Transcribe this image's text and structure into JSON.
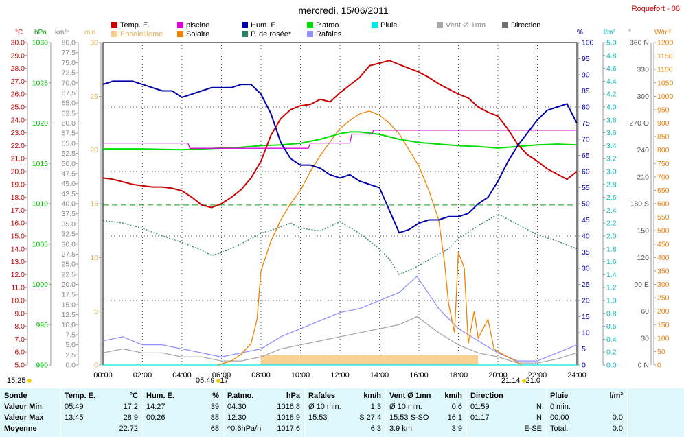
{
  "title": "mercredi, 15/06/2011",
  "station": "Roquefort - 06",
  "legend": [
    {
      "label": "Temp. E.",
      "color": "#cc0000"
    },
    {
      "label": "Ensoleilleme",
      "color": "#f8d090"
    },
    {
      "label": "piscine",
      "color": "#dd00dd"
    },
    {
      "label": "Solaire",
      "color": "#f08000"
    },
    {
      "label": "Hum. E.",
      "color": "#0000aa"
    },
    {
      "label": "P. de rosée*",
      "color": "#2e7d6a"
    },
    {
      "label": "P.atmo.",
      "color": "#00dd00"
    },
    {
      "label": "Rafales",
      "color": "#9090ff"
    },
    {
      "label": "Pluie",
      "color": "#00e8e8"
    },
    {
      "label": "Vent Ø 1mn",
      "color": "#a8a8a8"
    },
    {
      "label": "Direction",
      "color": "#707070"
    }
  ],
  "axis_units": {
    "temp": "°C",
    "pressure": "hPa",
    "wind": "km/h",
    "sun_min": "min",
    "humidity": "%",
    "rain": "l/m²",
    "direction": "°",
    "solar": "W/m²"
  },
  "footer": {
    "sunrise_left": "15:25",
    "sunrise": "05:49",
    "sunrise_suffix": "17",
    "sunset": "21:14",
    "sunset_suffix": "21:0"
  },
  "summary": {
    "row_labels": [
      "Sonde",
      "Valeur Min",
      "Valeur Max",
      "Moyenne"
    ],
    "columns": [
      {
        "name": "Temp. E.",
        "unit": "°C",
        "rows": [
          [
            "05:49",
            "17.2"
          ],
          [
            "13:45",
            "28.9"
          ],
          [
            "",
            "22.72"
          ]
        ]
      },
      {
        "name": "Hum. E.",
        "unit": "%",
        "rows": [
          [
            "14:27",
            "39"
          ],
          [
            "00:26",
            "88"
          ],
          [
            "",
            "68"
          ]
        ]
      },
      {
        "name": "P.atmo.",
        "unit": "hPa",
        "rows": [
          [
            "04:30",
            "1016.8"
          ],
          [
            "12:30",
            "1018.9"
          ],
          [
            "^0.6hPa/h",
            "1017.6"
          ]
        ]
      },
      {
        "name": "Rafales",
        "unit": "km/h",
        "rows": [
          [
            "Ø 10 min.",
            "1.3"
          ],
          [
            "15:53",
            "S 27.4"
          ],
          [
            "",
            "6.3"
          ]
        ]
      },
      {
        "name": "Vent Ø 1mn",
        "unit": "km/h",
        "rows": [
          [
            "Ø 10 min.",
            "0.6"
          ],
          [
            "15:53   S-SO",
            "16.1"
          ],
          [
            "3.9 km",
            "3.9"
          ]
        ]
      },
      {
        "name": "Direction",
        "unit": "",
        "rows": [
          [
            "01:59",
            "N"
          ],
          [
            "01:17",
            "N"
          ],
          [
            "",
            "E-SE"
          ]
        ]
      },
      {
        "name": "Pluie",
        "unit": "l/m²",
        "rows": [
          [
            "0 min.",
            ""
          ],
          [
            "00:00",
            "0.0"
          ],
          [
            "Total:",
            "0.0"
          ]
        ]
      }
    ]
  },
  "chart_data": {
    "type": "line",
    "title": "mercredi, 15/06/2011",
    "x_ticks": [
      "00:00",
      "02:00",
      "04:00",
      "06:00",
      "08:00",
      "10:00",
      "12:00",
      "14:00",
      "16:00",
      "18:00",
      "20:00",
      "22:00",
      "24:00"
    ],
    "xlim_hours": [
      0,
      24
    ],
    "axes": {
      "temp_c": {
        "range": [
          5,
          30
        ],
        "step": 1
      },
      "pressure_hpa": {
        "range": [
          990,
          1030
        ],
        "step": 5
      },
      "wind_kmh": {
        "range": [
          0,
          80
        ],
        "step": 2.5
      },
      "sun_min": {
        "range": [
          0,
          30
        ],
        "step": 5
      },
      "humidity_pct": {
        "range": [
          0,
          100
        ],
        "step": 5
      },
      "rain_lm2": {
        "range": [
          0,
          5
        ],
        "step": 0.2
      },
      "direction_deg": {
        "range": [
          0,
          360
        ],
        "ticks": [
          [
            0,
            "0 N"
          ],
          [
            30,
            "30"
          ],
          [
            60,
            "60"
          ],
          [
            90,
            "90 E"
          ],
          [
            120,
            "120"
          ],
          [
            150,
            "150"
          ],
          [
            180,
            "180 S"
          ],
          [
            210,
            "210"
          ],
          [
            240,
            "240"
          ],
          [
            270,
            "270 O"
          ],
          [
            300,
            "300"
          ],
          [
            330,
            "330"
          ],
          [
            360,
            "360 N"
          ]
        ]
      },
      "solar_wm2": {
        "range": [
          0,
          1200
        ],
        "step": 50
      }
    },
    "series": [
      {
        "name": "Temp. E.",
        "axis": "temp_c",
        "color": "#cc0000",
        "x": [
          0,
          0.5,
          1,
          1.5,
          2,
          2.5,
          3,
          3.5,
          4,
          4.5,
          5,
          5.5,
          6,
          6.5,
          7,
          7.5,
          8,
          8.5,
          9,
          9.5,
          10,
          10.5,
          11,
          11.5,
          12,
          12.5,
          13,
          13.5,
          14,
          14.5,
          15,
          15.5,
          16,
          16.5,
          17,
          17.5,
          18,
          18.5,
          19,
          19.5,
          20,
          20.5,
          21,
          21.5,
          22,
          22.5,
          23,
          23.5,
          24
        ],
        "y": [
          19.5,
          19.4,
          19.2,
          19.0,
          18.9,
          18.8,
          18.8,
          18.7,
          18.5,
          18.0,
          17.4,
          17.2,
          17.5,
          18.0,
          18.6,
          19.5,
          20.8,
          22.8,
          24.1,
          24.8,
          25.1,
          25.2,
          25.6,
          25.4,
          26.1,
          26.7,
          27.3,
          28.2,
          28.4,
          28.6,
          28.3,
          28.0,
          27.7,
          27.3,
          26.8,
          26.4,
          26.0,
          25.7,
          25.0,
          24.6,
          24.3,
          23.3,
          22.1,
          21.3,
          20.8,
          20.2,
          19.8,
          19.4,
          20.0
        ]
      },
      {
        "name": "Hum. E.",
        "axis": "humidity_pct",
        "color": "#0000aa",
        "x": [
          0,
          0.5,
          1,
          1.5,
          2,
          2.5,
          3,
          3.5,
          4,
          4.5,
          5,
          5.5,
          6,
          6.5,
          7,
          7.5,
          8,
          8.5,
          9,
          9.5,
          10,
          10.5,
          11,
          11.5,
          12,
          12.5,
          13,
          13.5,
          14,
          14.5,
          15,
          15.5,
          16,
          16.5,
          17,
          17.5,
          18,
          18.5,
          19,
          19.5,
          20,
          20.5,
          21,
          21.5,
          22,
          22.5,
          23,
          23.5,
          24
        ],
        "y": [
          87,
          88,
          88,
          88,
          87,
          86,
          85,
          85,
          83,
          84,
          85,
          86,
          86,
          86,
          87,
          87,
          84,
          78,
          69,
          64,
          62,
          62,
          61,
          59,
          58,
          59,
          57,
          56,
          55,
          48,
          41,
          42,
          44,
          45,
          45,
          46,
          46,
          47,
          50,
          52,
          57,
          63,
          68,
          72,
          76,
          79,
          80,
          81,
          75
        ]
      },
      {
        "name": "piscine",
        "axis": "temp_c",
        "color": "#dd00dd",
        "x": [
          0,
          4.3,
          4.4,
          10.4,
          10.5,
          12.5,
          12.6,
          13.6,
          13.7,
          24
        ],
        "y": [
          22.2,
          22.2,
          21.8,
          21.8,
          22.2,
          22.2,
          22.9,
          22.9,
          23.2,
          23.2
        ]
      },
      {
        "name": "P.atmo.",
        "axis": "pressure_hpa",
        "color": "#00dd00",
        "x": [
          0,
          2,
          4,
          6,
          7,
          8,
          9,
          10,
          11,
          12,
          12.5,
          13,
          14,
          15,
          16,
          17,
          18,
          19,
          20,
          21,
          22,
          23,
          24
        ],
        "y": [
          1016.8,
          1016.8,
          1016.7,
          1016.9,
          1017.0,
          1017.2,
          1017.3,
          1017.5,
          1018.0,
          1018.7,
          1018.9,
          1018.9,
          1018.6,
          1018.0,
          1017.6,
          1017.4,
          1017.2,
          1017.1,
          1016.9,
          1017.1,
          1017.3,
          1017.4,
          1017.3
        ]
      },
      {
        "name": "P. de rosée*",
        "axis": "temp_c",
        "color": "#2e7d6a",
        "x": [
          0,
          1,
          2,
          3,
          4,
          5,
          5.5,
          6,
          7,
          8,
          9,
          9.5,
          10,
          11,
          12,
          13,
          14,
          14.5,
          15,
          16,
          17,
          17.5,
          18,
          19,
          20,
          21,
          22,
          23,
          24
        ],
        "y": [
          16.2,
          16.0,
          15.6,
          15.0,
          14.5,
          13.9,
          13.5,
          13.7,
          14.4,
          15.2,
          15.7,
          16.0,
          15.6,
          15.4,
          16.1,
          15.2,
          14.0,
          13.2,
          12.0,
          12.7,
          13.6,
          14.0,
          14.8,
          15.8,
          16.7,
          15.9,
          15.1,
          14.6,
          14.0
        ]
      },
      {
        "name": "Solaire",
        "axis": "solar_wm2",
        "color": "#f08000",
        "x": [
          5.8,
          6.5,
          7,
          7.5,
          7.8,
          8,
          8.5,
          9,
          9.5,
          10,
          10.5,
          11,
          11.5,
          12,
          12.5,
          13,
          13.5,
          14,
          14.5,
          15,
          15.5,
          16,
          16.5,
          17,
          17.3,
          17.5,
          17.8,
          18,
          18.3,
          18.5,
          18.8,
          19,
          19.5,
          19.8,
          20,
          20.5,
          21,
          21.2
        ],
        "y": [
          0,
          15,
          40,
          80,
          170,
          350,
          460,
          540,
          600,
          650,
          720,
          780,
          830,
          880,
          910,
          935,
          945,
          930,
          900,
          860,
          800,
          740,
          650,
          540,
          380,
          230,
          120,
          420,
          360,
          80,
          200,
          100,
          170,
          60,
          50,
          30,
          10,
          0
        ]
      },
      {
        "name": "Rafales",
        "axis": "wind_kmh",
        "color": "#9090ff",
        "x": [
          0,
          1,
          2,
          3,
          4,
          5,
          6,
          7,
          8,
          9,
          10,
          11,
          12,
          13,
          14,
          15,
          15.9,
          17,
          18,
          19,
          20,
          21,
          22,
          23,
          24
        ],
        "y": [
          6,
          7,
          5,
          5,
          4,
          3,
          2,
          3,
          4,
          7,
          9,
          11,
          13,
          14,
          16,
          18,
          22,
          14,
          9,
          6,
          3,
          1,
          1,
          3,
          5
        ]
      },
      {
        "name": "Vent Ø 1mn",
        "axis": "wind_kmh",
        "color": "#a8a8a8",
        "x": [
          0,
          1,
          2,
          3,
          4,
          5,
          6,
          7,
          8,
          9,
          10,
          11,
          12,
          13,
          14,
          15,
          15.9,
          17,
          18,
          19,
          20,
          21,
          22,
          23,
          24
        ],
        "y": [
          3,
          4,
          3,
          3,
          2,
          2,
          1,
          1,
          2,
          4,
          5,
          6,
          7,
          8,
          9,
          10,
          12,
          8,
          5,
          3,
          2,
          0.5,
          0.5,
          1.5,
          3
        ]
      },
      {
        "name": "Pluie",
        "axis": "rain_lm2",
        "color": "#00e8e8",
        "x": [
          0,
          24
        ],
        "y": [
          0,
          0
        ]
      }
    ],
    "reference_lines": [
      {
        "axis": "temp_c",
        "value": 17.4,
        "color": "#00aa00",
        "style": "dashed"
      }
    ],
    "sunshine_bars": {
      "axis": "sun_min",
      "color": "#f8d090",
      "from_hour": 8.0,
      "to_hour": 19.0,
      "value": 0.9
    }
  }
}
